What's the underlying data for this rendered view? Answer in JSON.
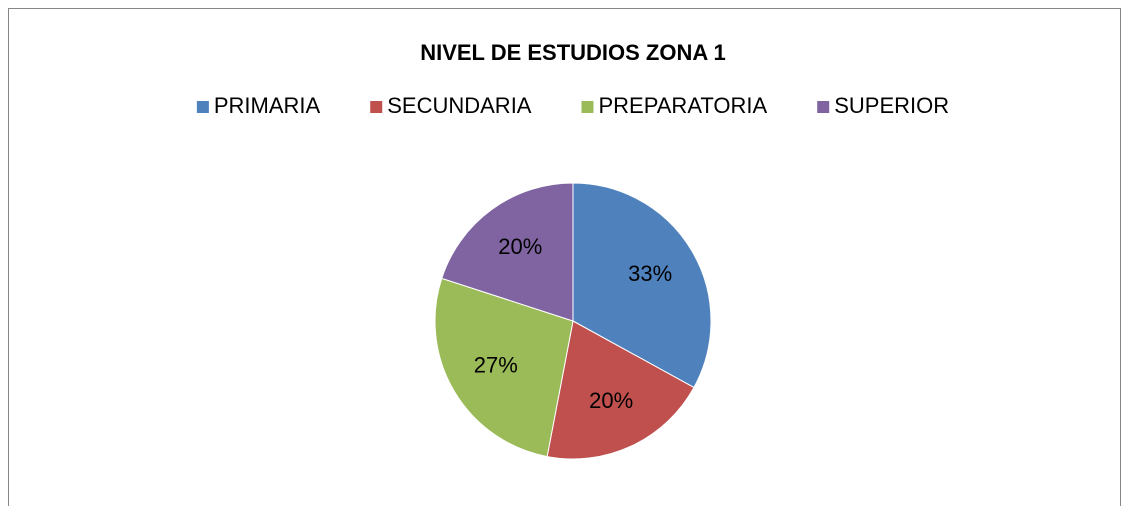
{
  "chart_data": {
    "type": "pie",
    "title": "NIVEL DE ESTUDIOS ZONA 1",
    "categories": [
      "PRIMARIA",
      "SECUNDARIA",
      "PREPARATORIA",
      "SUPERIOR"
    ],
    "values": [
      33,
      20,
      27,
      20
    ],
    "value_labels": [
      "33%",
      "20%",
      "27%",
      "20%"
    ],
    "colors": [
      "#4f81bd",
      "#c0504d",
      "#9bbb59",
      "#8064a2"
    ],
    "legend": "top"
  }
}
